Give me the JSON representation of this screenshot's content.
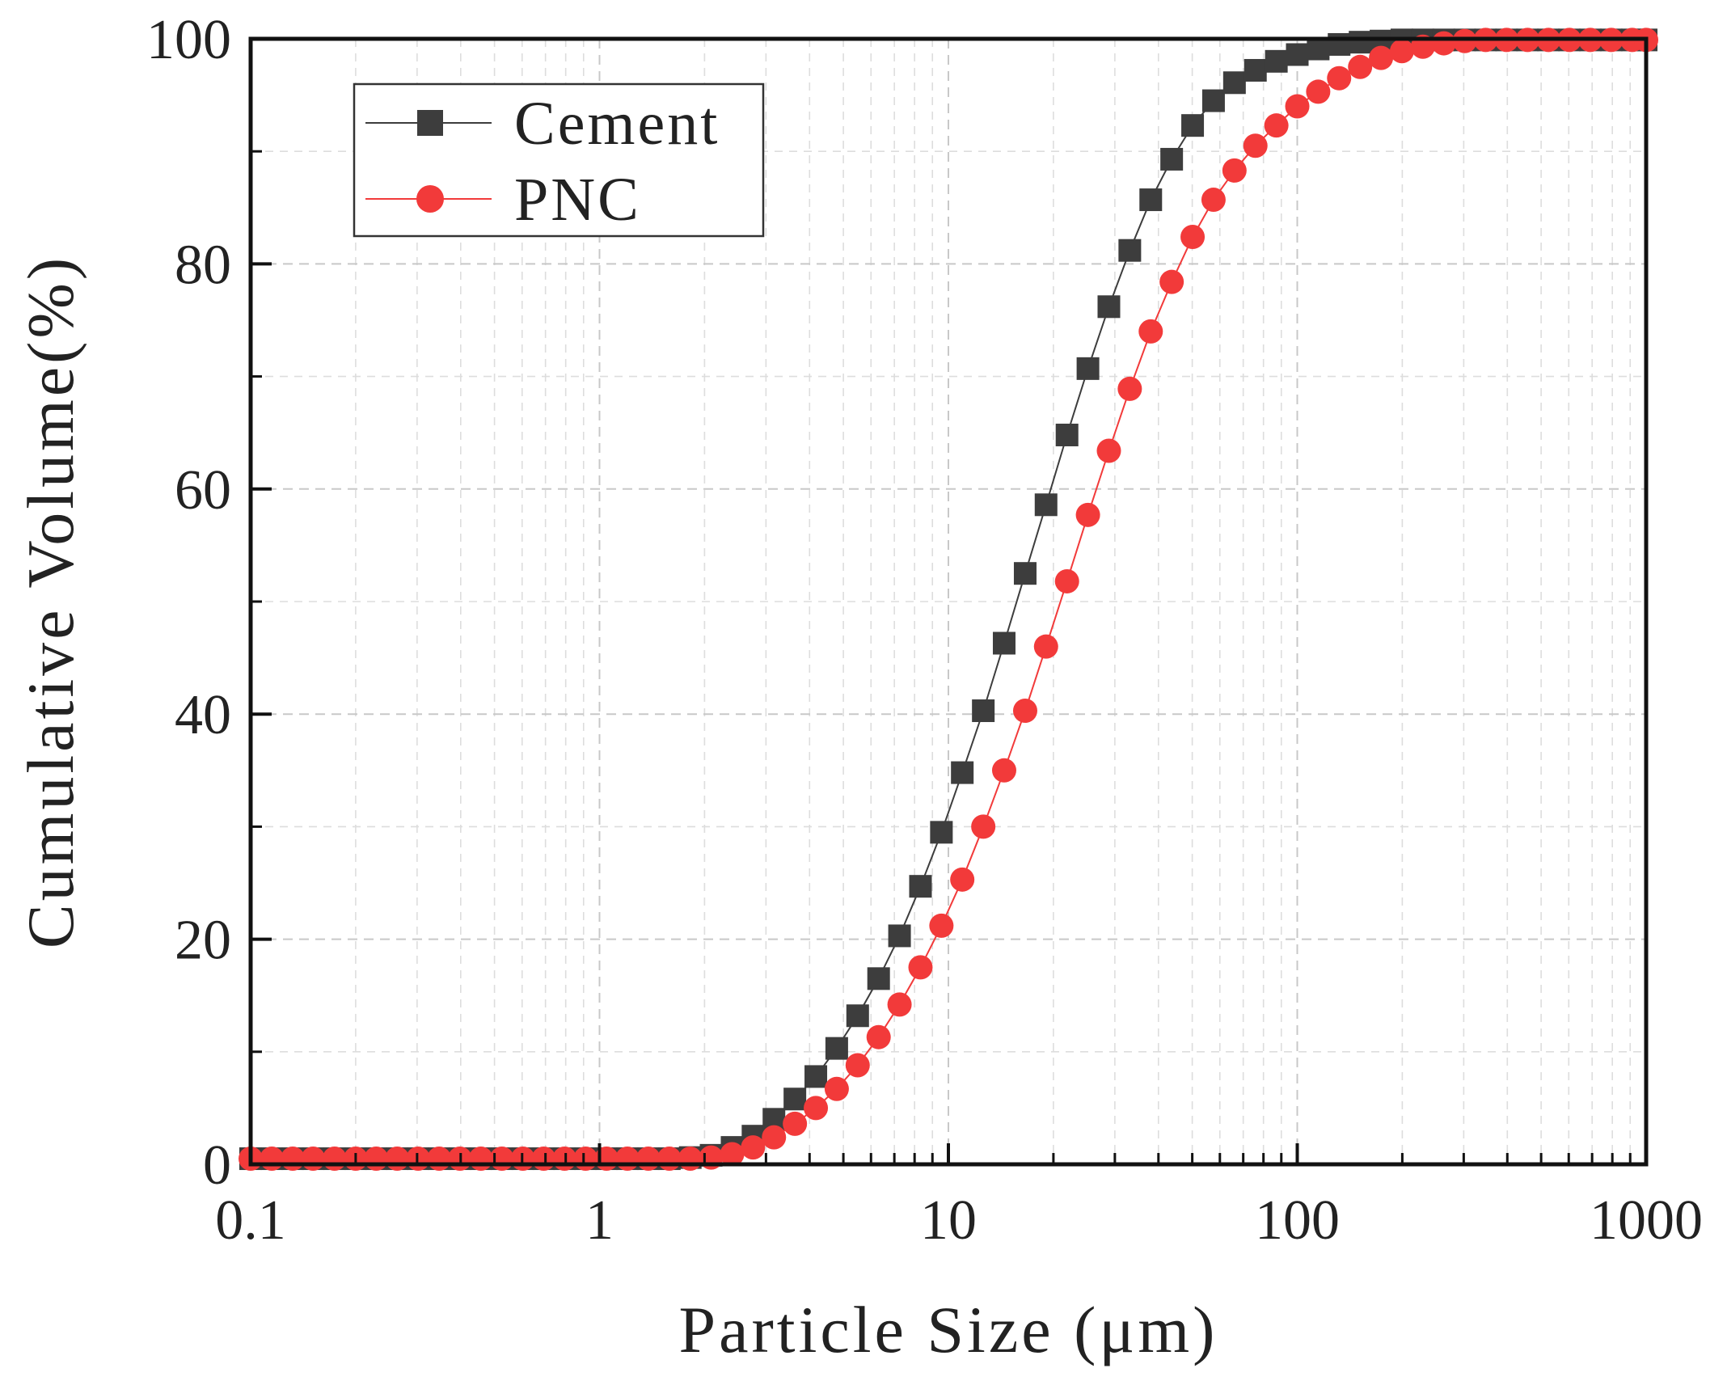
{
  "chart_data": {
    "type": "scatter",
    "xscale": "log",
    "xlim": [
      0.1,
      1000
    ],
    "ylim": [
      0,
      100
    ],
    "xlabel": "Particle Size (μm)",
    "ylabel": "Cumulative Volume(%)",
    "x_ticks": [
      0.1,
      1,
      10,
      100,
      1000
    ],
    "x_tick_labels": [
      "0.1",
      "1",
      "10",
      "100",
      "1000"
    ],
    "y_ticks": [
      0,
      20,
      40,
      60,
      80,
      100
    ],
    "y_tick_labels": [
      "0",
      "20",
      "40",
      "60",
      "80",
      "100"
    ],
    "grid": true,
    "legend_position": "top-left",
    "series": [
      {
        "name": "Cement",
        "marker": "square",
        "color": "#3d3d3d",
        "x": [
          0.1,
          0.115,
          0.132,
          0.151,
          0.174,
          0.2,
          0.229,
          0.263,
          0.302,
          0.347,
          0.398,
          0.457,
          0.525,
          0.603,
          0.692,
          0.794,
          0.912,
          1.047,
          1.202,
          1.38,
          1.585,
          1.82,
          2.089,
          2.399,
          2.754,
          3.162,
          3.631,
          4.169,
          4.786,
          5.495,
          6.31,
          7.244,
          8.318,
          9.55,
          10.96,
          12.59,
          14.45,
          16.6,
          19.05,
          21.88,
          25.12,
          28.84,
          33.11,
          38.02,
          43.65,
          50.12,
          57.54,
          66.07,
          75.86,
          87.1,
          100,
          114.8,
          131.8,
          151.4,
          173.8,
          199.5,
          229.1,
          263,
          302,
          346.7,
          398.1,
          457.1,
          524.8,
          602.6,
          691.8,
          794.3,
          912,
          1000
        ],
        "y": [
          0.5,
          0.5,
          0.5,
          0.5,
          0.5,
          0.5,
          0.5,
          0.5,
          0.5,
          0.5,
          0.5,
          0.5,
          0.5,
          0.5,
          0.5,
          0.5,
          0.5,
          0.5,
          0.5,
          0.5,
          0.5,
          0.6,
          0.8,
          1.5,
          2.5,
          4,
          5.8,
          7.8,
          10.3,
          13.2,
          16.5,
          20.3,
          24.7,
          29.5,
          34.8,
          40.3,
          46.3,
          52.5,
          58.6,
          64.8,
          70.7,
          76.2,
          81.2,
          85.7,
          89.3,
          92.3,
          94.5,
          96.1,
          97.2,
          98,
          98.6,
          99.1,
          99.5,
          99.7,
          99.8,
          99.9,
          99.9,
          99.9,
          99.9,
          99.9,
          99.9,
          99.9,
          99.9,
          99.9,
          99.9,
          99.9,
          99.9,
          99.9
        ]
      },
      {
        "name": "PNC",
        "marker": "circle",
        "color": "#f23a3a",
        "x": [
          0.1,
          0.115,
          0.132,
          0.151,
          0.174,
          0.2,
          0.229,
          0.263,
          0.302,
          0.347,
          0.398,
          0.457,
          0.525,
          0.603,
          0.692,
          0.794,
          0.912,
          1.047,
          1.202,
          1.38,
          1.585,
          1.82,
          2.089,
          2.399,
          2.754,
          3.162,
          3.631,
          4.169,
          4.786,
          5.495,
          6.31,
          7.244,
          8.318,
          9.55,
          10.96,
          12.59,
          14.45,
          16.6,
          19.05,
          21.88,
          25.12,
          28.84,
          33.11,
          38.02,
          43.65,
          50.12,
          57.54,
          66.07,
          75.86,
          87.1,
          100,
          114.8,
          131.8,
          151.4,
          173.8,
          199.5,
          229.1,
          263,
          302,
          346.7,
          398.1,
          457.1,
          524.8,
          602.6,
          691.8,
          794.3,
          912,
          1000
        ],
        "y": [
          0.5,
          0.5,
          0.5,
          0.5,
          0.5,
          0.5,
          0.5,
          0.5,
          0.5,
          0.5,
          0.5,
          0.5,
          0.5,
          0.5,
          0.5,
          0.5,
          0.5,
          0.5,
          0.5,
          0.5,
          0.5,
          0.5,
          0.6,
          0.9,
          1.5,
          2.4,
          3.6,
          5,
          6.7,
          8.8,
          11.3,
          14.2,
          17.5,
          21.2,
          25.3,
          30,
          35,
          40.3,
          46,
          51.8,
          57.7,
          63.4,
          68.9,
          74,
          78.4,
          82.4,
          85.7,
          88.3,
          90.5,
          92.3,
          94,
          95.3,
          96.5,
          97.5,
          98.3,
          98.9,
          99.3,
          99.6,
          99.8,
          99.9,
          99.9,
          99.9,
          99.9,
          99.9,
          99.9,
          99.9,
          99.9,
          99.9
        ]
      }
    ]
  }
}
